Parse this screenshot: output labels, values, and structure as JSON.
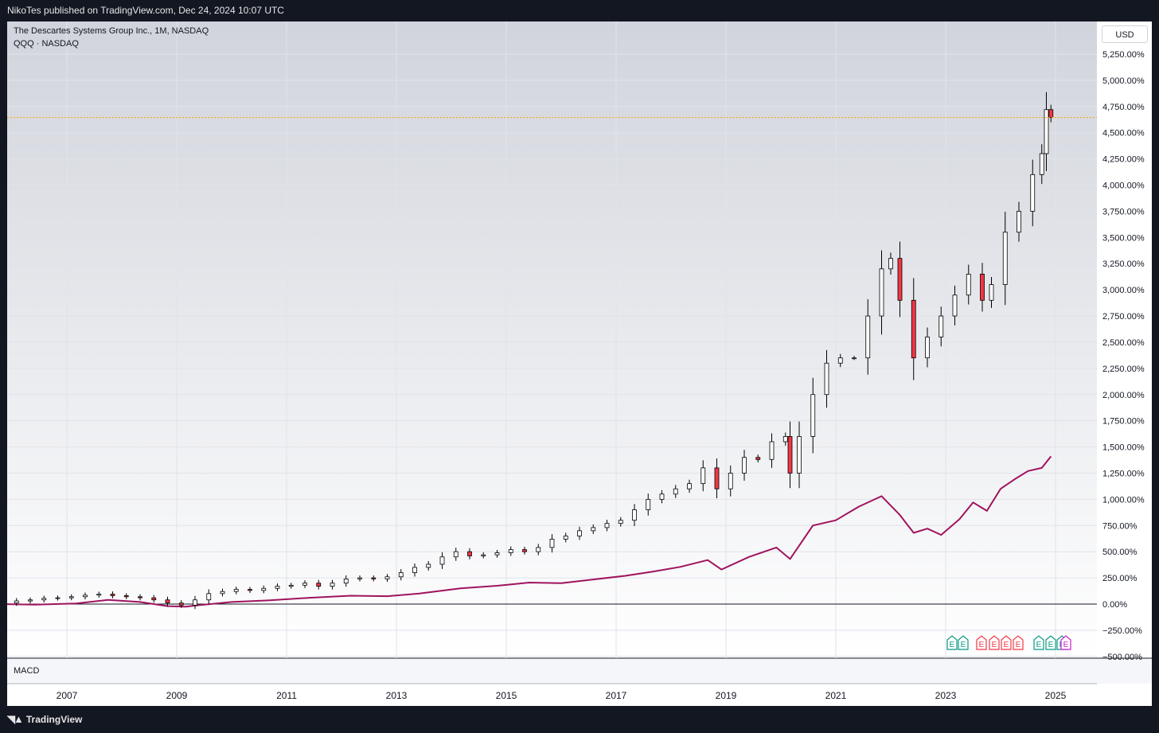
{
  "header": {
    "publisher_text": "NikoTes published on TradingView.com, Dec 24, 2024 10:07 UTC"
  },
  "legend": {
    "symbol_line": "The Descartes Systems Group Inc., 1M, NASDAQ",
    "compare_line": "QQQ · NASDAQ"
  },
  "currency_button": "USD",
  "macd_label": "MACD",
  "footer": {
    "brand": "TradingView"
  },
  "event_markers": [
    "E",
    "E",
    "E",
    "E",
    "E",
    "E",
    "E",
    "E",
    "E",
    "E"
  ],
  "colors": {
    "up_body": "#ffffff",
    "down_body": "#f23645",
    "candle_outline": "#000000",
    "compare_line": "#a0135e",
    "last_price_line": "#f7a600",
    "earnings_green": "#089981",
    "earnings_red": "#f23645",
    "earnings_purple": "#c41fcc"
  },
  "chart_data": {
    "type": "line",
    "scale": "percent",
    "ylim": [
      -500,
      5330
    ],
    "y_ticks": [
      "5,250.00%",
      "5,000.00%",
      "4,750.00%",
      "4,500.00%",
      "4,250.00%",
      "4,000.00%",
      "3,750.00%",
      "3,500.00%",
      "3,250.00%",
      "3,000.00%",
      "2,750.00%",
      "2,500.00%",
      "2,250.00%",
      "2,000.00%",
      "1,750.00%",
      "1,500.00%",
      "1,250.00%",
      "1,000.00%",
      "750.00%",
      "500.00%",
      "250.00%",
      "0.00%",
      "−250.00%",
      "−500.00%"
    ],
    "x_ticks": [
      "2007",
      "2009",
      "2011",
      "2013",
      "2015",
      "2017",
      "2019",
      "2021",
      "2023",
      "2025"
    ],
    "grid": true,
    "last_value": 4645,
    "series": [
      {
        "style": "candlestick",
        "points": [
          {
            "date": "2005-11",
            "close": 10
          },
          {
            "date": "2006-02",
            "close": 30
          },
          {
            "date": "2006-05",
            "close": 40
          },
          {
            "date": "2006-08",
            "close": 55
          },
          {
            "date": "2006-11",
            "close": 60
          },
          {
            "date": "2007-02",
            "close": 70
          },
          {
            "date": "2007-05",
            "close": 85
          },
          {
            "date": "2007-08",
            "close": 95
          },
          {
            "date": "2007-11",
            "close": 80
          },
          {
            "date": "2008-02",
            "close": 70
          },
          {
            "date": "2008-05",
            "close": 60
          },
          {
            "date": "2008-08",
            "close": 40
          },
          {
            "date": "2008-11",
            "close": 10
          },
          {
            "date": "2009-02",
            "close": -10
          },
          {
            "date": "2009-05",
            "close": 40
          },
          {
            "date": "2009-08",
            "close": 100
          },
          {
            "date": "2009-11",
            "close": 120
          },
          {
            "date": "2010-02",
            "close": 140
          },
          {
            "date": "2010-05",
            "close": 130
          },
          {
            "date": "2010-08",
            "close": 150
          },
          {
            "date": "2010-11",
            "close": 170
          },
          {
            "date": "2011-02",
            "close": 180
          },
          {
            "date": "2011-05",
            "close": 200
          },
          {
            "date": "2011-08",
            "close": 170
          },
          {
            "date": "2011-11",
            "close": 200
          },
          {
            "date": "2012-02",
            "close": 240
          },
          {
            "date": "2012-05",
            "close": 250
          },
          {
            "date": "2012-08",
            "close": 240
          },
          {
            "date": "2012-11",
            "close": 260
          },
          {
            "date": "2013-02",
            "close": 300
          },
          {
            "date": "2013-05",
            "close": 350
          },
          {
            "date": "2013-08",
            "close": 380
          },
          {
            "date": "2013-11",
            "close": 450
          },
          {
            "date": "2014-02",
            "close": 500
          },
          {
            "date": "2014-05",
            "close": 460
          },
          {
            "date": "2014-08",
            "close": 470
          },
          {
            "date": "2014-11",
            "close": 490
          },
          {
            "date": "2015-02",
            "close": 520
          },
          {
            "date": "2015-05",
            "close": 500
          },
          {
            "date": "2015-08",
            "close": 540
          },
          {
            "date": "2015-11",
            "close": 620
          },
          {
            "date": "2016-02",
            "close": 650
          },
          {
            "date": "2016-05",
            "close": 700
          },
          {
            "date": "2016-08",
            "close": 730
          },
          {
            "date": "2016-11",
            "close": 770
          },
          {
            "date": "2017-02",
            "close": 800
          },
          {
            "date": "2017-05",
            "close": 900
          },
          {
            "date": "2017-08",
            "close": 1000
          },
          {
            "date": "2017-11",
            "close": 1050
          },
          {
            "date": "2018-02",
            "close": 1100
          },
          {
            "date": "2018-05",
            "close": 1150
          },
          {
            "date": "2018-08",
            "close": 1300
          },
          {
            "date": "2018-11",
            "close": 1100
          },
          {
            "date": "2019-02",
            "close": 1250
          },
          {
            "date": "2019-05",
            "close": 1400
          },
          {
            "date": "2019-08",
            "close": 1380
          },
          {
            "date": "2019-11",
            "close": 1550
          },
          {
            "date": "2020-02",
            "close": 1600
          },
          {
            "date": "2020-03",
            "close": 1250
          },
          {
            "date": "2020-05",
            "close": 1600
          },
          {
            "date": "2020-08",
            "close": 2000
          },
          {
            "date": "2020-11",
            "close": 2300
          },
          {
            "date": "2021-02",
            "close": 2350
          },
          {
            "date": "2021-05",
            "close": 2350
          },
          {
            "date": "2021-08",
            "close": 2750
          },
          {
            "date": "2021-11",
            "close": 3200
          },
          {
            "date": "2022-01",
            "close": 3300
          },
          {
            "date": "2022-03",
            "close": 2900
          },
          {
            "date": "2022-06",
            "close": 2350
          },
          {
            "date": "2022-09",
            "close": 2550
          },
          {
            "date": "2022-12",
            "close": 2750
          },
          {
            "date": "2023-03",
            "close": 2950
          },
          {
            "date": "2023-06",
            "close": 3150
          },
          {
            "date": "2023-09",
            "close": 2900
          },
          {
            "date": "2023-11",
            "close": 3050
          },
          {
            "date": "2024-02",
            "close": 3550
          },
          {
            "date": "2024-05",
            "close": 3750
          },
          {
            "date": "2024-08",
            "close": 4100
          },
          {
            "date": "2024-10",
            "close": 4300
          },
          {
            "date": "2024-11",
            "close": 4720
          },
          {
            "date": "2024-12",
            "close": 4645
          }
        ]
      },
      {
        "name": "QQQ",
        "style": "line",
        "points": [
          {
            "date": "2005-11",
            "value": 0
          },
          {
            "date": "2006-06",
            "value": -5
          },
          {
            "date": "2007-03",
            "value": 5
          },
          {
            "date": "2007-10",
            "value": 40
          },
          {
            "date": "2008-05",
            "value": 20
          },
          {
            "date": "2008-11",
            "value": -20
          },
          {
            "date": "2009-03",
            "value": -25
          },
          {
            "date": "2009-06",
            "value": -10
          },
          {
            "date": "2010-01",
            "value": 20
          },
          {
            "date": "2010-09",
            "value": 35
          },
          {
            "date": "2011-06",
            "value": 60
          },
          {
            "date": "2012-03",
            "value": 80
          },
          {
            "date": "2012-11",
            "value": 75
          },
          {
            "date": "2013-06",
            "value": 100
          },
          {
            "date": "2014-03",
            "value": 150
          },
          {
            "date": "2014-11",
            "value": 175
          },
          {
            "date": "2015-06",
            "value": 205
          },
          {
            "date": "2016-01",
            "value": 200
          },
          {
            "date": "2016-08",
            "value": 235
          },
          {
            "date": "2017-03",
            "value": 270
          },
          {
            "date": "2017-09",
            "value": 310
          },
          {
            "date": "2018-03",
            "value": 355
          },
          {
            "date": "2018-09",
            "value": 420
          },
          {
            "date": "2018-12",
            "value": 330
          },
          {
            "date": "2019-06",
            "value": 450
          },
          {
            "date": "2019-12",
            "value": 540
          },
          {
            "date": "2020-03",
            "value": 430
          },
          {
            "date": "2020-08",
            "value": 750
          },
          {
            "date": "2021-01",
            "value": 800
          },
          {
            "date": "2021-06",
            "value": 930
          },
          {
            "date": "2021-11",
            "value": 1030
          },
          {
            "date": "2022-03",
            "value": 850
          },
          {
            "date": "2022-06",
            "value": 680
          },
          {
            "date": "2022-09",
            "value": 720
          },
          {
            "date": "2022-12",
            "value": 660
          },
          {
            "date": "2023-04",
            "value": 810
          },
          {
            "date": "2023-07",
            "value": 970
          },
          {
            "date": "2023-10",
            "value": 890
          },
          {
            "date": "2024-01",
            "value": 1100
          },
          {
            "date": "2024-04",
            "value": 1190
          },
          {
            "date": "2024-07",
            "value": 1270
          },
          {
            "date": "2024-10",
            "value": 1300
          },
          {
            "date": "2024-12",
            "value": 1410
          }
        ]
      }
    ]
  }
}
